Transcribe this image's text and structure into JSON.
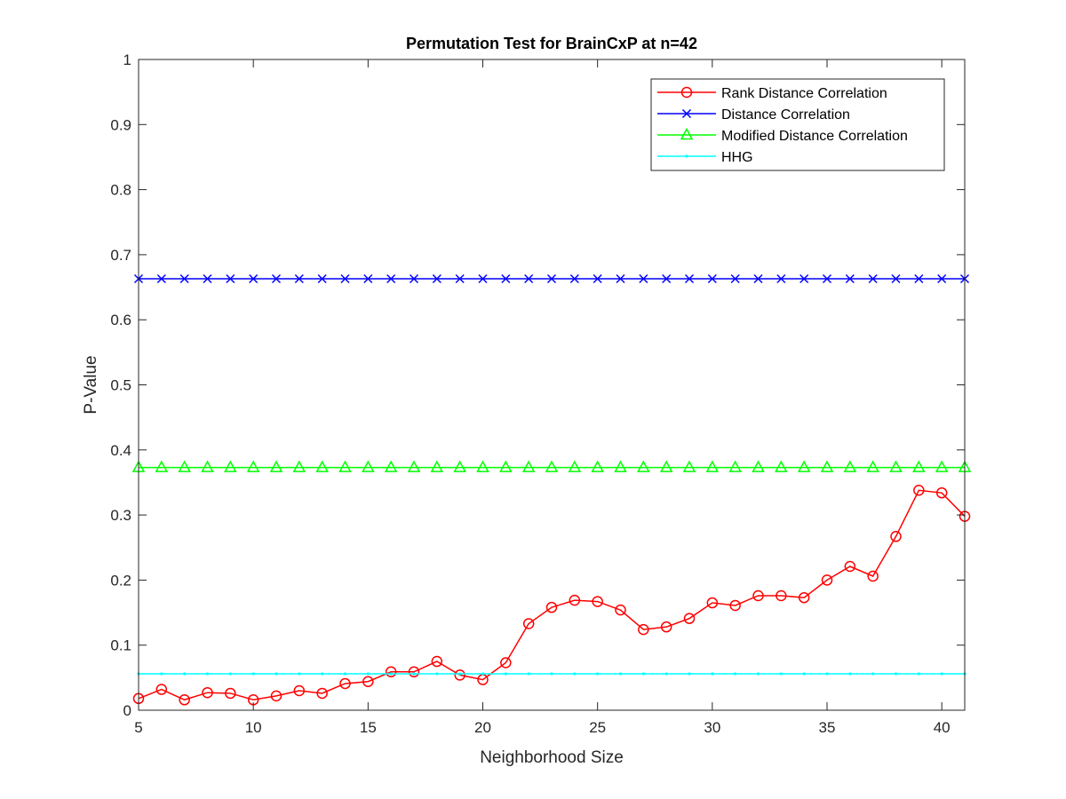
{
  "chart_data": {
    "type": "line",
    "title": "Permutation Test for BrainCxP at n=42",
    "xlabel": "Neighborhood Size",
    "ylabel": "P-Value",
    "xlim": [
      5,
      41
    ],
    "ylim": [
      0,
      1
    ],
    "xticks": [
      "5",
      "10",
      "15",
      "20",
      "25",
      "30",
      "35",
      "40"
    ],
    "yticks": [
      "0",
      "0.1",
      "0.2",
      "0.3",
      "0.4",
      "0.5",
      "0.6",
      "0.7",
      "0.8",
      "0.9",
      "1"
    ],
    "grid": false,
    "legend_position": "top-right",
    "x": [
      5,
      6,
      7,
      8,
      9,
      10,
      11,
      12,
      13,
      14,
      15,
      16,
      17,
      18,
      19,
      20,
      21,
      22,
      23,
      24,
      25,
      26,
      27,
      28,
      29,
      30,
      31,
      32,
      33,
      34,
      35,
      36,
      37,
      38,
      39,
      40,
      41
    ],
    "series": [
      {
        "name": "Rank Distance Correlation",
        "color": "#ff0000",
        "marker": "circle",
        "values": [
          0.018,
          0.032,
          0.016,
          0.027,
          0.026,
          0.016,
          0.022,
          0.03,
          0.026,
          0.041,
          0.044,
          0.059,
          0.059,
          0.075,
          0.054,
          0.047,
          0.073,
          0.133,
          0.158,
          0.169,
          0.167,
          0.154,
          0.124,
          0.128,
          0.141,
          0.165,
          0.161,
          0.176,
          0.176,
          0.173,
          0.2,
          0.221,
          0.206,
          0.267,
          0.338,
          0.334,
          0.298
        ]
      },
      {
        "name": "Distance Correlation",
        "color": "#0000ff",
        "marker": "x",
        "values": [
          0.663,
          0.663,
          0.663,
          0.663,
          0.663,
          0.663,
          0.663,
          0.663,
          0.663,
          0.663,
          0.663,
          0.663,
          0.663,
          0.663,
          0.663,
          0.663,
          0.663,
          0.663,
          0.663,
          0.663,
          0.663,
          0.663,
          0.663,
          0.663,
          0.663,
          0.663,
          0.663,
          0.663,
          0.663,
          0.663,
          0.663,
          0.663,
          0.663,
          0.663,
          0.663,
          0.663,
          0.663
        ]
      },
      {
        "name": "Modified Distance Correlation",
        "color": "#00ff00",
        "marker": "triangle",
        "values": [
          0.373,
          0.373,
          0.373,
          0.373,
          0.373,
          0.373,
          0.373,
          0.373,
          0.373,
          0.373,
          0.373,
          0.373,
          0.373,
          0.373,
          0.373,
          0.373,
          0.373,
          0.373,
          0.373,
          0.373,
          0.373,
          0.373,
          0.373,
          0.373,
          0.373,
          0.373,
          0.373,
          0.373,
          0.373,
          0.373,
          0.373,
          0.373,
          0.373,
          0.373,
          0.373,
          0.373,
          0.373
        ]
      },
      {
        "name": "HHG",
        "color": "#00ffff",
        "marker": "dot",
        "values": [
          0.056,
          0.056,
          0.056,
          0.056,
          0.056,
          0.056,
          0.056,
          0.056,
          0.056,
          0.056,
          0.056,
          0.056,
          0.056,
          0.056,
          0.056,
          0.056,
          0.056,
          0.056,
          0.056,
          0.056,
          0.056,
          0.056,
          0.056,
          0.056,
          0.056,
          0.056,
          0.056,
          0.056,
          0.056,
          0.056,
          0.056,
          0.056,
          0.056,
          0.056,
          0.056,
          0.056,
          0.056
        ]
      }
    ]
  }
}
